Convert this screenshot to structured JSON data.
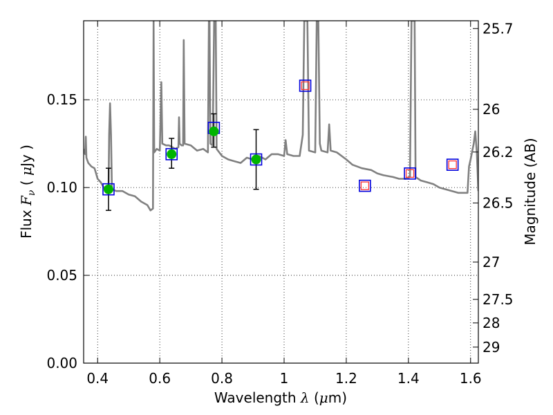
{
  "chart_data": {
    "type": "scatter",
    "title": "",
    "xlabel": {
      "prefix": "Wavelength ",
      "symbol": "λ",
      "suffix": " (",
      "unit_symbol": "μ",
      "unit_rest": "m)"
    },
    "ylabel": {
      "prefix": "Flux ",
      "symbol": "F",
      "subscript": "ν",
      "suffix": " ( ",
      "unit_symbol": "μ",
      "unit_rest": "Jy )"
    },
    "y2label": "Magnitude (AB)",
    "xlim": [
      0.355,
      1.625
    ],
    "ylim": [
      0.0,
      0.195
    ],
    "grid": true,
    "x_ticks": [
      {
        "value": 0.4,
        "label": "0.4"
      },
      {
        "value": 0.6,
        "label": "0.6"
      },
      {
        "value": 0.8,
        "label": "0.8"
      },
      {
        "value": 1.0,
        "label": "1"
      },
      {
        "value": 1.2,
        "label": "1.2"
      },
      {
        "value": 1.4,
        "label": "1.4"
      },
      {
        "value": 1.6,
        "label": "1.6"
      }
    ],
    "y_ticks": [
      {
        "value": 0.0,
        "label": "0.00"
      },
      {
        "value": 0.05,
        "label": "0.05"
      },
      {
        "value": 0.1,
        "label": "0.10"
      },
      {
        "value": 0.15,
        "label": "0.15"
      }
    ],
    "y2_ticks": [
      {
        "mag": 25.7,
        "label": "25.7"
      },
      {
        "mag": 26.0,
        "label": "26"
      },
      {
        "mag": 26.2,
        "label": "26.2"
      },
      {
        "mag": 26.5,
        "label": "26.5"
      },
      {
        "mag": 27.0,
        "label": "27"
      },
      {
        "mag": 27.5,
        "label": "27.5"
      },
      {
        "mag": 28.0,
        "label": "28"
      },
      {
        "mag": 29.0,
        "label": "29"
      }
    ],
    "series": [
      {
        "kind": "model_spectrum",
        "color": "#808080",
        "points": [
          [
            0.355,
            0.122
          ],
          [
            0.36,
            0.119
          ],
          [
            0.362,
            0.129
          ],
          [
            0.364,
            0.117
          ],
          [
            0.37,
            0.114
          ],
          [
            0.38,
            0.112
          ],
          [
            0.39,
            0.111
          ],
          [
            0.395,
            0.108
          ],
          [
            0.4,
            0.105
          ],
          [
            0.41,
            0.103
          ],
          [
            0.42,
            0.1
          ],
          [
            0.43,
            0.099
          ],
          [
            0.435,
            0.097
          ],
          [
            0.437,
            0.13
          ],
          [
            0.44,
            0.148
          ],
          [
            0.443,
            0.13
          ],
          [
            0.446,
            0.099
          ],
          [
            0.46,
            0.098
          ],
          [
            0.48,
            0.098
          ],
          [
            0.5,
            0.096
          ],
          [
            0.52,
            0.095
          ],
          [
            0.54,
            0.092
          ],
          [
            0.56,
            0.09
          ],
          [
            0.57,
            0.087
          ],
          [
            0.578,
            0.088
          ],
          [
            0.58,
            0.195
          ],
          [
            0.582,
            0.12
          ],
          [
            0.59,
            0.122
          ],
          [
            0.6,
            0.121
          ],
          [
            0.605,
            0.16
          ],
          [
            0.608,
            0.125
          ],
          [
            0.62,
            0.124
          ],
          [
            0.63,
            0.124
          ],
          [
            0.64,
            0.123
          ],
          [
            0.65,
            0.122
          ],
          [
            0.66,
            0.123
          ],
          [
            0.662,
            0.14
          ],
          [
            0.664,
            0.125
          ],
          [
            0.67,
            0.124
          ],
          [
            0.675,
            0.124
          ],
          [
            0.677,
            0.184
          ],
          [
            0.68,
            0.125
          ],
          [
            0.7,
            0.124
          ],
          [
            0.72,
            0.121
          ],
          [
            0.74,
            0.122
          ],
          [
            0.755,
            0.12
          ],
          [
            0.758,
            0.195
          ],
          [
            0.76,
            0.195
          ],
          [
            0.763,
            0.125
          ],
          [
            0.77,
            0.124
          ],
          [
            0.775,
            0.195
          ],
          [
            0.778,
            0.195
          ],
          [
            0.78,
            0.195
          ],
          [
            0.783,
            0.122
          ],
          [
            0.8,
            0.118
          ],
          [
            0.82,
            0.116
          ],
          [
            0.84,
            0.115
          ],
          [
            0.86,
            0.114
          ],
          [
            0.88,
            0.117
          ],
          [
            0.9,
            0.116
          ],
          [
            0.92,
            0.118
          ],
          [
            0.94,
            0.116
          ],
          [
            0.96,
            0.119
          ],
          [
            0.98,
            0.119
          ],
          [
            1.0,
            0.118
          ],
          [
            1.005,
            0.127
          ],
          [
            1.01,
            0.119
          ],
          [
            1.03,
            0.118
          ],
          [
            1.05,
            0.118
          ],
          [
            1.06,
            0.13
          ],
          [
            1.065,
            0.195
          ],
          [
            1.075,
            0.195
          ],
          [
            1.08,
            0.121
          ],
          [
            1.1,
            0.12
          ],
          [
            1.105,
            0.195
          ],
          [
            1.11,
            0.195
          ],
          [
            1.115,
            0.125
          ],
          [
            1.12,
            0.121
          ],
          [
            1.14,
            0.12
          ],
          [
            1.145,
            0.136
          ],
          [
            1.15,
            0.121
          ],
          [
            1.17,
            0.12
          ],
          [
            1.2,
            0.116
          ],
          [
            1.22,
            0.113
          ],
          [
            1.25,
            0.111
          ],
          [
            1.28,
            0.11
          ],
          [
            1.3,
            0.108
          ],
          [
            1.32,
            0.107
          ],
          [
            1.35,
            0.106
          ],
          [
            1.37,
            0.105
          ],
          [
            1.39,
            0.105
          ],
          [
            1.405,
            0.106
          ],
          [
            1.41,
            0.195
          ],
          [
            1.42,
            0.195
          ],
          [
            1.423,
            0.106
          ],
          [
            1.44,
            0.104
          ],
          [
            1.46,
            0.103
          ],
          [
            1.48,
            0.102
          ],
          [
            1.5,
            0.1
          ],
          [
            1.52,
            0.099
          ],
          [
            1.54,
            0.098
          ],
          [
            1.56,
            0.097
          ],
          [
            1.58,
            0.097
          ],
          [
            1.59,
            0.097
          ],
          [
            1.595,
            0.112
          ],
          [
            1.6,
            0.116
          ],
          [
            1.61,
            0.125
          ],
          [
            1.615,
            0.132
          ],
          [
            1.62,
            0.12
          ],
          [
            1.625,
            0.098
          ]
        ]
      },
      {
        "kind": "observed_photometry",
        "color": "#00b400",
        "points": [
          {
            "x": 0.435,
            "y": 0.099,
            "ylo": 0.087,
            "yhi": 0.111
          },
          {
            "x": 0.638,
            "y": 0.119,
            "ylo": 0.111,
            "yhi": 0.128
          },
          {
            "x": 0.774,
            "y": 0.132,
            "ylo": 0.123,
            "yhi": 0.142
          },
          {
            "x": 0.91,
            "y": 0.116,
            "ylo": 0.099,
            "yhi": 0.133
          }
        ]
      },
      {
        "kind": "model_bandpass_flux",
        "color": "#0000dd",
        "points": [
          {
            "x": 0.435,
            "y": 0.099
          },
          {
            "x": 0.638,
            "y": 0.119
          },
          {
            "x": 0.774,
            "y": 0.134
          },
          {
            "x": 0.91,
            "y": 0.116
          },
          {
            "x": 1.068,
            "y": 0.158
          },
          {
            "x": 1.26,
            "y": 0.101
          },
          {
            "x": 1.405,
            "y": 0.108
          },
          {
            "x": 1.542,
            "y": 0.113
          }
        ]
      },
      {
        "kind": "model_bandpass_flux_inner",
        "color": "#ff3333",
        "points": [
          {
            "x": 1.068,
            "y": 0.158
          },
          {
            "x": 1.26,
            "y": 0.101
          },
          {
            "x": 1.405,
            "y": 0.108
          },
          {
            "x": 1.542,
            "y": 0.113
          }
        ]
      }
    ]
  }
}
